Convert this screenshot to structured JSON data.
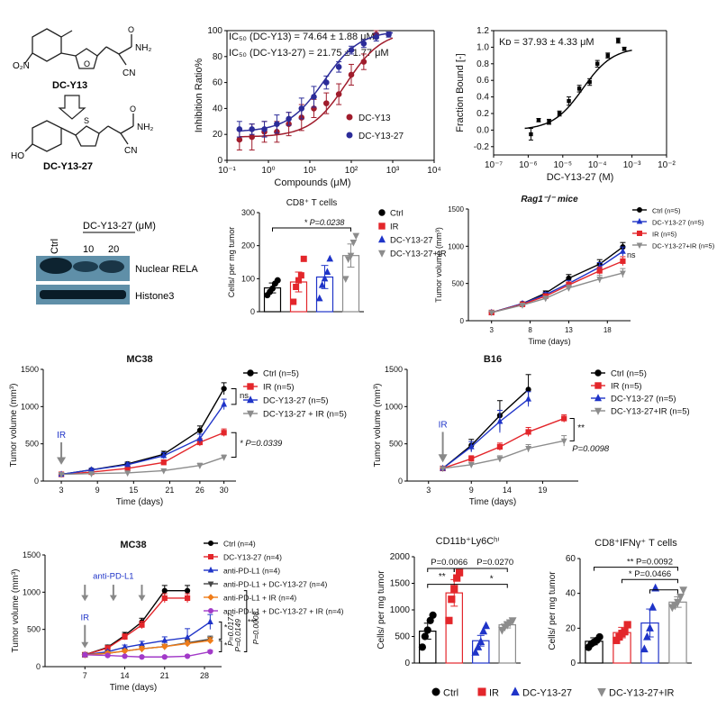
{
  "chem": {
    "dc_y13": {
      "name": "DC-Y13",
      "subs": [
        "O₂N",
        "NH₂",
        "CN",
        "O",
        "O"
      ]
    },
    "dc_y13_27": {
      "name": "DC-Y13-27",
      "subs": [
        "HO",
        "NH₂",
        "CN",
        "S",
        "O"
      ]
    }
  },
  "blot": {
    "header": "DC-Y13-27 (μM)",
    "lanes": [
      "Ctrl",
      "10",
      "20"
    ],
    "rows": [
      "Nuclear RELA",
      "Histone3"
    ]
  },
  "colors": {
    "black": "#000000",
    "red": "#e3262b",
    "blue": "#1f34c8",
    "gray": "#8c8c8c",
    "orange": "#f07d1a",
    "purple": "#a23ac8",
    "maroon": "#a01c2c",
    "navy": "#2c2c99"
  },
  "chart_data": [
    {
      "id": "ic50",
      "type": "line",
      "xscale": "log",
      "xlim": [
        0.1,
        10000
      ],
      "ylim": [
        0,
        100
      ],
      "xticks": [
        "10⁻¹",
        "10⁰",
        "10¹",
        "10²",
        "10³",
        "10⁴"
      ],
      "yticks": [
        0,
        20,
        40,
        60,
        80,
        100
      ],
      "xlabel": "Compounds (μM)",
      "ylabel": "Inhibition Ratio%",
      "annotations": [
        "IC₅₀ (DC-Y13) = 74.64 ± 1.88 μM",
        "IC₅₀ (DC-Y13-27) = 21.75 ± 1.77 μM"
      ],
      "legend_position": "right",
      "series": [
        {
          "name": "DC-Y13",
          "color": "#a01c2c",
          "x": [
            0.2,
            0.4,
            0.8,
            1.6,
            3.1,
            6.3,
            12.5,
            25,
            50,
            100,
            200,
            400
          ],
          "y": [
            16,
            18,
            22,
            22,
            28,
            33,
            40,
            44,
            51,
            66,
            76,
            97
          ],
          "err": [
            8,
            10,
            8,
            8,
            9,
            10,
            7,
            8,
            8,
            8,
            6,
            3
          ],
          "fit": {
            "bottom": 18,
            "top": 100,
            "ic50": 74.64
          }
        },
        {
          "name": "DC-Y13-27",
          "color": "#2c2c99",
          "x": [
            0.2,
            0.4,
            0.8,
            1.6,
            3.1,
            6.3,
            12.5,
            25,
            50,
            100,
            200,
            400,
            800
          ],
          "y": [
            24,
            24,
            24,
            28,
            32,
            40,
            49,
            60,
            72,
            85,
            90,
            95,
            97
          ],
          "err": [
            6,
            4,
            6,
            7,
            5,
            8,
            8,
            5,
            4,
            3,
            3,
            3,
            2
          ],
          "fit": {
            "bottom": 22,
            "top": 100,
            "ic50": 21.75
          }
        }
      ]
    },
    {
      "id": "kd",
      "type": "scatter",
      "xscale": "log",
      "xlim": [
        1e-07,
        0.01
      ],
      "ylim": [
        -0.3,
        1.2
      ],
      "xticks": [
        "10⁻⁷",
        "10⁻⁶",
        "10⁻⁵",
        "10⁻⁴",
        "10⁻³",
        "10⁻²"
      ],
      "yticks": [
        "-0.2",
        "0.0",
        "0.2",
        "0.4",
        "0.6",
        "0.8",
        "1.0",
        "1.2"
      ],
      "xlabel": "DC-Y13-27 (M)",
      "ylabel": "Fraction Bound [-]",
      "annotations": [
        "Kᴅ = 37.93 ± 4.33 μM"
      ],
      "series": [
        {
          "name": "",
          "color": "#000000",
          "x": [
            1.2e-06,
            2e-06,
            4e-06,
            8e-06,
            1.5e-05,
            3e-05,
            6e-05,
            0.0001,
            0.0002,
            0.0004,
            0.0006
          ],
          "y": [
            -0.05,
            0.12,
            0.1,
            0.2,
            0.35,
            0.5,
            0.58,
            0.8,
            0.9,
            1.08,
            0.98
          ],
          "err": [
            0.07,
            0.02,
            0.03,
            0.03,
            0.05,
            0.04,
            0.04,
            0.04,
            0.03,
            0.03,
            0.02
          ],
          "fit": {
            "bottom": 0,
            "top": 1,
            "kd": 3.793e-05
          }
        }
      ]
    },
    {
      "id": "cd8",
      "type": "bar",
      "title": "CD8⁺ T cells",
      "categories": [
        "Ctrl",
        "IR",
        "DC-Y13-27",
        "DC-Y13-27+IR"
      ],
      "ylim": [
        0,
        300
      ],
      "yticks": [
        0,
        100,
        200,
        300
      ],
      "ylabel": "Cells/ per mg tumor",
      "values": [
        72,
        90,
        105,
        170
      ],
      "err": [
        15,
        30,
        35,
        35
      ],
      "points": [
        [
          50,
          60,
          70,
          85,
          95
        ],
        [
          30,
          75,
          95,
          110,
          160
        ],
        [
          40,
          80,
          100,
          120,
          160
        ],
        [
          100,
          160,
          170,
          210,
          230
        ]
      ],
      "markers": [
        "circle",
        "square",
        "triangle",
        "triangle-down"
      ],
      "colors": [
        "#000000",
        "#e3262b",
        "#1f34c8",
        "#8c8c8c"
      ],
      "annotations": [
        "* P=0.0238"
      ],
      "legend": [
        "Ctrl",
        "IR",
        "DC-Y13-27",
        "DC-Y13-27+IR"
      ]
    },
    {
      "id": "rag",
      "type": "line",
      "title": "Rag1⁻/⁻ mice",
      "xlim": [
        0,
        21
      ],
      "ylim": [
        0,
        1500
      ],
      "xticks": [
        3,
        8,
        13,
        18
      ],
      "yticks": [
        0,
        500,
        1000,
        1500
      ],
      "xlabel": "Time (days)",
      "ylabel": "Tumor volume (mm³)",
      "annotations": [
        "ns"
      ],
      "series": [
        {
          "name": "Ctrl (n=5)",
          "color": "#000000",
          "marker": "circle",
          "x": [
            3,
            7,
            10,
            13,
            17,
            20
          ],
          "y": [
            110,
            230,
            370,
            570,
            760,
            990
          ],
          "err": [
            20,
            20,
            30,
            50,
            60,
            60
          ]
        },
        {
          "name": "DC-Y13-27 (n=5)",
          "color": "#1f34c8",
          "marker": "triangle",
          "x": [
            3,
            7,
            10,
            13,
            17,
            20
          ],
          "y": [
            110,
            230,
            350,
            500,
            720,
            930
          ],
          "err": [
            20,
            20,
            30,
            40,
            60,
            60
          ]
        },
        {
          "name": "IR (n=5)",
          "color": "#e3262b",
          "marker": "square",
          "x": [
            3,
            7,
            10,
            13,
            17,
            20
          ],
          "y": [
            110,
            220,
            330,
            480,
            670,
            800
          ],
          "err": [
            20,
            20,
            30,
            40,
            50,
            60
          ]
        },
        {
          "name": "DC-Y13-27+IR (n=5)",
          "color": "#8c8c8c",
          "marker": "triangle-down",
          "x": [
            3,
            7,
            10,
            13,
            17,
            20
          ],
          "y": [
            110,
            210,
            300,
            440,
            560,
            640
          ],
          "err": [
            20,
            20,
            30,
            40,
            50,
            60
          ]
        }
      ]
    },
    {
      "id": "mc38a",
      "type": "line",
      "title": "MC38",
      "xlim": [
        0,
        32
      ],
      "ylim": [
        0,
        1500
      ],
      "xticks": [
        3,
        9,
        15,
        21,
        26,
        30
      ],
      "yticks": [
        0,
        500,
        1000,
        1500
      ],
      "xlabel": "Time (days)",
      "ylabel": "Tumor volume (mm³)",
      "arrow_label": "IR",
      "arrow_x": 3,
      "annotations": [
        "ns",
        "* P=0.0339"
      ],
      "series": [
        {
          "name": "Ctrl (n=5)",
          "color": "#000000",
          "marker": "circle",
          "x": [
            3,
            8,
            14,
            20,
            26,
            30
          ],
          "y": [
            90,
            150,
            230,
            360,
            680,
            1240
          ],
          "err": [
            15,
            20,
            25,
            40,
            60,
            80
          ]
        },
        {
          "name": "IR (n=5)",
          "color": "#e3262b",
          "marker": "square",
          "x": [
            3,
            8,
            14,
            20,
            26,
            30
          ],
          "y": [
            90,
            120,
            170,
            250,
            520,
            650
          ],
          "err": [
            15,
            20,
            25,
            35,
            50,
            50
          ]
        },
        {
          "name": "DC-Y13-27  (n=5)",
          "color": "#1f34c8",
          "marker": "triangle",
          "x": [
            3,
            8,
            14,
            20,
            26,
            30
          ],
          "y": [
            90,
            150,
            220,
            340,
            570,
            1030
          ],
          "err": [
            15,
            20,
            25,
            40,
            60,
            70
          ]
        },
        {
          "name": "DC-Y13-27 + IR  (n=5)",
          "color": "#8c8c8c",
          "marker": "triangle-down",
          "x": [
            3,
            8,
            14,
            20,
            26,
            30
          ],
          "y": [
            90,
            100,
            110,
            140,
            210,
            320
          ],
          "err": [
            10,
            15,
            15,
            20,
            30,
            30
          ]
        }
      ]
    },
    {
      "id": "b16",
      "type": "line",
      "title": "B16",
      "xlim": [
        0,
        24
      ],
      "ylim": [
        0,
        1500
      ],
      "xticks": [
        3,
        9,
        14,
        19
      ],
      "yticks": [
        0,
        500,
        1000,
        1500
      ],
      "xlabel": "Time (days)",
      "ylabel": "Tumor volume (mm³)",
      "arrow_label": "IR",
      "arrow_x": 5,
      "annotations": [
        "**",
        "P=0.0098"
      ],
      "series": [
        {
          "name": "Ctrl (n=5)",
          "color": "#000000",
          "marker": "circle",
          "x": [
            5,
            9,
            13,
            17
          ],
          "y": [
            170,
            480,
            880,
            1230
          ],
          "err": [
            20,
            80,
            200,
            200
          ]
        },
        {
          "name": "IR (n=5)",
          "color": "#e3262b",
          "marker": "square",
          "x": [
            5,
            9,
            13,
            17,
            22
          ],
          "y": [
            170,
            300,
            460,
            660,
            840
          ],
          "err": [
            20,
            40,
            50,
            60,
            50
          ]
        },
        {
          "name": "DC-Y13-27 (n=5)",
          "color": "#1f34c8",
          "marker": "triangle",
          "x": [
            5,
            9,
            13,
            17
          ],
          "y": [
            170,
            460,
            800,
            1100
          ],
          "err": [
            20,
            70,
            150,
            100
          ]
        },
        {
          "name": "DC-Y13-27+IR (n=5)",
          "color": "#8c8c8c",
          "marker": "triangle-down",
          "x": [
            5,
            9,
            13,
            17,
            22
          ],
          "y": [
            170,
            220,
            300,
            440,
            540
          ],
          "err": [
            20,
            30,
            40,
            50,
            70
          ]
        }
      ]
    },
    {
      "id": "mc38b",
      "type": "line",
      "title": "MC38",
      "xlim": [
        0,
        31
      ],
      "ylim": [
        0,
        1500
      ],
      "xticks": [
        7,
        14,
        21,
        28
      ],
      "yticks": [
        0,
        500,
        1000,
        1500
      ],
      "xlabel": "Time (days)",
      "ylabel": "Tumor volume (mm³)",
      "arrows": [
        {
          "label": "anti-PD-L1",
          "x": [
            7,
            12,
            17
          ]
        },
        {
          "label": "IR",
          "x": [
            7
          ]
        }
      ],
      "annotations": [
        "*",
        "P=0.0177",
        "*",
        "P=0.0149",
        "***",
        "P=0.0008"
      ],
      "series": [
        {
          "name": "Ctrl (n=4)",
          "color": "#000000",
          "marker": "circle",
          "x": [
            7,
            11,
            14,
            17,
            21,
            25
          ],
          "y": [
            160,
            260,
            420,
            600,
            1020,
            1020
          ],
          "err": [
            20,
            30,
            40,
            50,
            70,
            70
          ]
        },
        {
          "name": "DC-Y13-27 (n=4)",
          "color": "#e3262b",
          "marker": "square",
          "x": [
            7,
            11,
            14,
            17,
            21,
            25
          ],
          "y": [
            160,
            250,
            400,
            560,
            920,
            920
          ],
          "err": [
            20,
            30,
            40,
            50,
            60,
            60
          ]
        },
        {
          "name": "anti-PD-L1 (n=4)",
          "color": "#1f34c8",
          "marker": "triangle",
          "x": [
            7,
            11,
            14,
            17,
            21,
            25,
            29
          ],
          "y": [
            160,
            200,
            260,
            300,
            350,
            390,
            600
          ],
          "err": [
            20,
            20,
            30,
            40,
            50,
            120,
            100
          ]
        },
        {
          "name": "anti-PD-L1 + DC-Y13-27 (n=4)",
          "color": "#444444",
          "marker": "triangle-down",
          "x": [
            7,
            11,
            14,
            17,
            21,
            25,
            29
          ],
          "y": [
            160,
            180,
            210,
            240,
            270,
            320,
            370
          ],
          "err": [
            20,
            20,
            20,
            30,
            30,
            40,
            40
          ]
        },
        {
          "name": "anti-PD-L1 + IR (n=4)",
          "color": "#f07d1a",
          "marker": "diamond",
          "x": [
            7,
            11,
            14,
            17,
            21,
            25,
            29
          ],
          "y": [
            160,
            180,
            210,
            240,
            270,
            310,
            350
          ],
          "err": [
            20,
            20,
            20,
            30,
            30,
            40,
            40
          ]
        },
        {
          "name": "anti-PD-L1 + DC-Y13-27 + IR (n=4)",
          "color": "#a23ac8",
          "marker": "circle",
          "x": [
            7,
            11,
            14,
            17,
            21,
            25,
            29
          ],
          "y": [
            160,
            150,
            140,
            130,
            130,
            140,
            200
          ],
          "err": [
            10,
            10,
            10,
            10,
            10,
            15,
            20
          ]
        }
      ]
    },
    {
      "id": "cd11b",
      "type": "bar",
      "title": "CD11b⁺Ly6Cʰⁱ",
      "categories": [
        "Ctrl",
        "IR",
        "DC-Y13-27",
        "DC-Y13-27+IR"
      ],
      "ylim": [
        0,
        2000
      ],
      "yticks": [
        0,
        500,
        1000,
        1500,
        2000
      ],
      "ylabel": "Cells/ per mg tumor",
      "values": [
        600,
        1320,
        420,
        720
      ],
      "err": [
        150,
        250,
        100,
        60
      ],
      "points": [
        [
          300,
          500,
          620,
          800,
          900
        ],
        [
          800,
          1200,
          1400,
          1600,
          1700
        ],
        [
          200,
          300,
          400,
          600,
          700
        ],
        [
          620,
          680,
          720,
          760,
          800
        ]
      ],
      "markers": [
        "circle",
        "square",
        "triangle",
        "triangle-down"
      ],
      "colors": [
        "#000000",
        "#e3262b",
        "#1f34c8",
        "#8c8c8c"
      ],
      "annotations": [
        "P=0.0066",
        "P=0.0270",
        "**",
        "*"
      ]
    },
    {
      "id": "cd8ifn",
      "type": "bar",
      "title": "CD8⁺IFNγ⁺ T cells",
      "categories": [
        "Ctrl",
        "IR",
        "DC-Y13-27",
        "DC-Y13-27+IR"
      ],
      "ylim": [
        0,
        60
      ],
      "yticks": [
        0,
        20,
        40,
        60
      ],
      "ylabel": "Cells/ per mg tumor",
      "values": [
        12.5,
        17.5,
        23,
        35
      ],
      "err": [
        2,
        3,
        8,
        3
      ],
      "points": [
        [
          9,
          11,
          12,
          13,
          15
        ],
        [
          13,
          15,
          17,
          18,
          22
        ],
        [
          8,
          15,
          20,
          32,
          43
        ],
        [
          32,
          33,
          35,
          38,
          42
        ]
      ],
      "markers": [
        "circle",
        "square",
        "triangle",
        "triangle-down"
      ],
      "colors": [
        "#000000",
        "#e3262b",
        "#1f34c8",
        "#8c8c8c"
      ],
      "annotations": [
        "** P=0.0092",
        "* P=0.0466"
      ],
      "legend": [
        "Ctrl",
        "IR",
        "DC-Y13-27",
        "DC-Y13-27+IR"
      ]
    }
  ]
}
